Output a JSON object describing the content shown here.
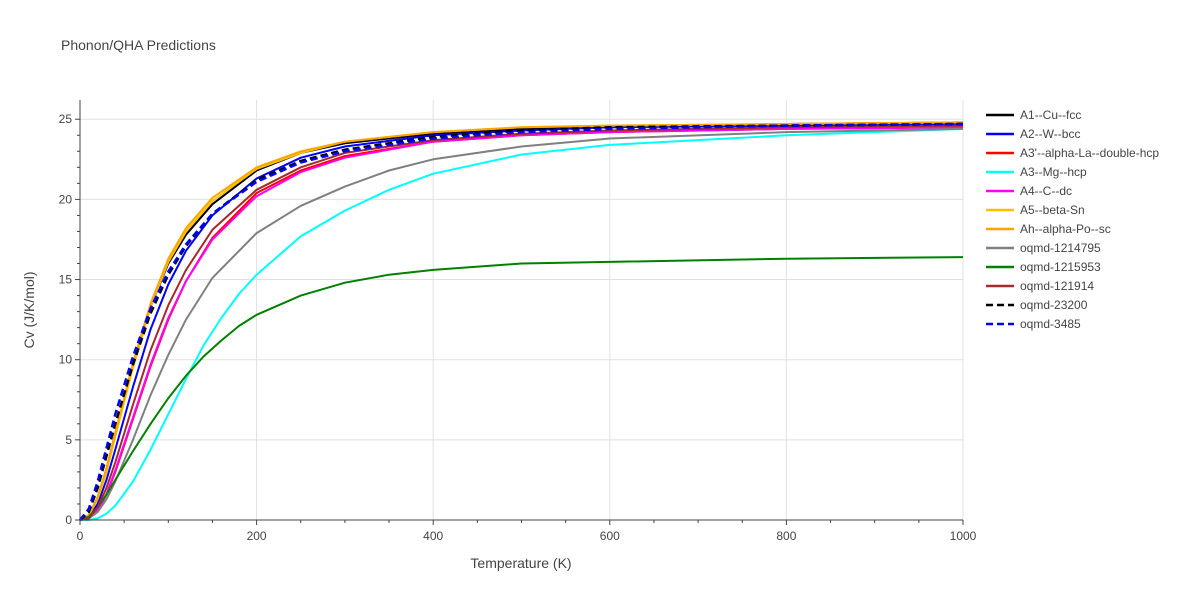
{
  "chart_data": {
    "type": "line",
    "title": "Phonon/QHA Predictions",
    "xlabel": "Temperature (K)",
    "ylabel": "Cv (J/K/mol)",
    "xlim": [
      0,
      1000
    ],
    "ylim": [
      0,
      26.2
    ],
    "xticks": [
      0,
      200,
      400,
      600,
      800,
      1000
    ],
    "yticks": [
      0,
      5,
      10,
      15,
      20,
      25
    ],
    "grid": true,
    "legend_position": "right",
    "series": [
      {
        "name": "A1--Cu--fcc",
        "color": "#000000",
        "dash": "solid",
        "x": [
          0,
          10,
          20,
          30,
          40,
          60,
          80,
          100,
          120,
          150,
          200,
          250,
          300,
          400,
          500,
          600,
          800,
          1000
        ],
        "y": [
          0,
          0.3,
          1.4,
          3.2,
          5.4,
          9.6,
          13.3,
          16.0,
          17.8,
          19.7,
          21.8,
          22.9,
          23.5,
          24.1,
          24.4,
          24.5,
          24.7,
          24.8
        ]
      },
      {
        "name": "A2--W--bcc",
        "color": "#0000ff",
        "dash": "solid",
        "x": [
          0,
          10,
          20,
          30,
          40,
          60,
          80,
          100,
          120,
          150,
          200,
          250,
          300,
          400,
          500,
          600,
          800,
          1000
        ],
        "y": [
          0,
          0.2,
          1.0,
          2.5,
          4.4,
          8.3,
          11.9,
          14.7,
          16.8,
          19.0,
          21.3,
          22.6,
          23.3,
          24.0,
          24.3,
          24.5,
          24.6,
          24.7
        ]
      },
      {
        "name": "A3'--alpha-La--double-hcp",
        "color": "#ff0000",
        "dash": "solid",
        "x": [
          0,
          10,
          20,
          30,
          40,
          60,
          80,
          100,
          120,
          150,
          200,
          250,
          300,
          400,
          500,
          600,
          800,
          1000
        ],
        "y": [
          0,
          0.1,
          0.6,
          1.6,
          3.0,
          6.3,
          9.6,
          12.5,
          14.9,
          17.6,
          20.4,
          21.8,
          22.7,
          23.6,
          24.0,
          24.2,
          24.4,
          24.5
        ]
      },
      {
        "name": "A3--Mg--hcp",
        "color": "#00ffff",
        "dash": "solid",
        "x": [
          0,
          10,
          20,
          30,
          40,
          60,
          80,
          100,
          120,
          140,
          160,
          180,
          200,
          250,
          300,
          350,
          400,
          500,
          600,
          800,
          1000
        ],
        "y": [
          0,
          0.0,
          0.1,
          0.4,
          0.9,
          2.4,
          4.4,
          6.6,
          8.8,
          10.9,
          12.6,
          14.1,
          15.3,
          17.7,
          19.3,
          20.6,
          21.6,
          22.8,
          23.4,
          24.0,
          24.4
        ]
      },
      {
        "name": "A4--C--dc",
        "color": "#ff00ff",
        "dash": "solid",
        "x": [
          0,
          10,
          20,
          30,
          40,
          60,
          80,
          100,
          120,
          150,
          200,
          250,
          300,
          400,
          500,
          600,
          800,
          1000
        ],
        "y": [
          0,
          0.1,
          0.6,
          1.6,
          3.1,
          6.4,
          9.7,
          12.6,
          14.9,
          17.5,
          20.2,
          21.7,
          22.6,
          23.6,
          24.0,
          24.2,
          24.4,
          24.5
        ]
      },
      {
        "name": "A5--beta-Sn",
        "color": "#ffc000",
        "dash": "solid",
        "x": [
          0,
          10,
          20,
          30,
          40,
          60,
          80,
          100,
          120,
          150,
          200,
          250,
          300,
          400,
          500,
          600,
          800,
          1000
        ],
        "y": [
          0,
          0.3,
          1.3,
          3.0,
          5.2,
          9.5,
          13.3,
          16.1,
          18.0,
          19.9,
          21.9,
          22.9,
          23.6,
          24.2,
          24.5,
          24.6,
          24.7,
          24.8
        ]
      },
      {
        "name": "Ah--alpha-Po--sc",
        "color": "#ffa500",
        "dash": "solid",
        "x": [
          0,
          10,
          20,
          30,
          40,
          60,
          80,
          100,
          120,
          150,
          200,
          250,
          300,
          400,
          500,
          600,
          800,
          1000
        ],
        "y": [
          0,
          0.3,
          1.4,
          3.2,
          5.4,
          9.8,
          13.5,
          16.3,
          18.2,
          20.1,
          22.0,
          23.0,
          23.6,
          24.2,
          24.5,
          24.6,
          24.7,
          24.8
        ]
      },
      {
        "name": "oqmd-1214795",
        "color": "#808080",
        "dash": "solid",
        "x": [
          0,
          10,
          20,
          30,
          40,
          60,
          80,
          100,
          120,
          150,
          200,
          250,
          300,
          350,
          400,
          500,
          600,
          800,
          1000
        ],
        "y": [
          0,
          0.1,
          0.5,
          1.3,
          2.4,
          5.0,
          7.8,
          10.3,
          12.5,
          15.1,
          17.9,
          19.6,
          20.8,
          21.8,
          22.5,
          23.3,
          23.8,
          24.2,
          24.4
        ]
      },
      {
        "name": "oqmd-1215953",
        "color": "#008000",
        "dash": "solid",
        "x": [
          0,
          10,
          20,
          30,
          40,
          60,
          80,
          100,
          120,
          140,
          160,
          180,
          200,
          250,
          300,
          350,
          400,
          500,
          600,
          800,
          1000
        ],
        "y": [
          0,
          0.2,
          0.8,
          1.6,
          2.5,
          4.3,
          6.0,
          7.6,
          9.0,
          10.2,
          11.2,
          12.1,
          12.8,
          14.0,
          14.8,
          15.3,
          15.6,
          16.0,
          16.1,
          16.3,
          16.4
        ]
      },
      {
        "name": "oqmd-121914",
        "color": "#a52a2a",
        "dash": "solid",
        "x": [
          0,
          10,
          20,
          30,
          40,
          60,
          80,
          100,
          120,
          150,
          200,
          250,
          300,
          400,
          500,
          600,
          800,
          1000
        ],
        "y": [
          0,
          0.1,
          0.8,
          2.0,
          3.6,
          7.2,
          10.6,
          13.4,
          15.6,
          18.1,
          20.6,
          22.0,
          22.9,
          23.7,
          24.1,
          24.3,
          24.5,
          24.6
        ]
      },
      {
        "name": "oqmd-23200",
        "color": "#000000",
        "dash": "dash",
        "x": [
          0,
          10,
          20,
          30,
          40,
          60,
          80,
          100,
          120,
          150,
          200,
          250,
          300,
          400,
          500,
          600,
          800,
          1000
        ],
        "y": [
          0,
          0.5,
          2.0,
          4.0,
          6.0,
          9.7,
          12.9,
          15.3,
          17.1,
          19.1,
          21.2,
          22.4,
          23.1,
          23.9,
          24.3,
          24.5,
          24.6,
          24.7
        ]
      },
      {
        "name": "oqmd-3485",
        "color": "#0000ff",
        "dash": "dash",
        "x": [
          0,
          10,
          20,
          30,
          40,
          60,
          80,
          100,
          120,
          150,
          200,
          250,
          300,
          400,
          500,
          600,
          800,
          1000
        ],
        "y": [
          0,
          0.7,
          2.4,
          4.5,
          6.6,
          10.2,
          13.2,
          15.5,
          17.2,
          19.1,
          21.1,
          22.3,
          23.0,
          23.8,
          24.2,
          24.4,
          24.6,
          24.7
        ]
      }
    ]
  }
}
